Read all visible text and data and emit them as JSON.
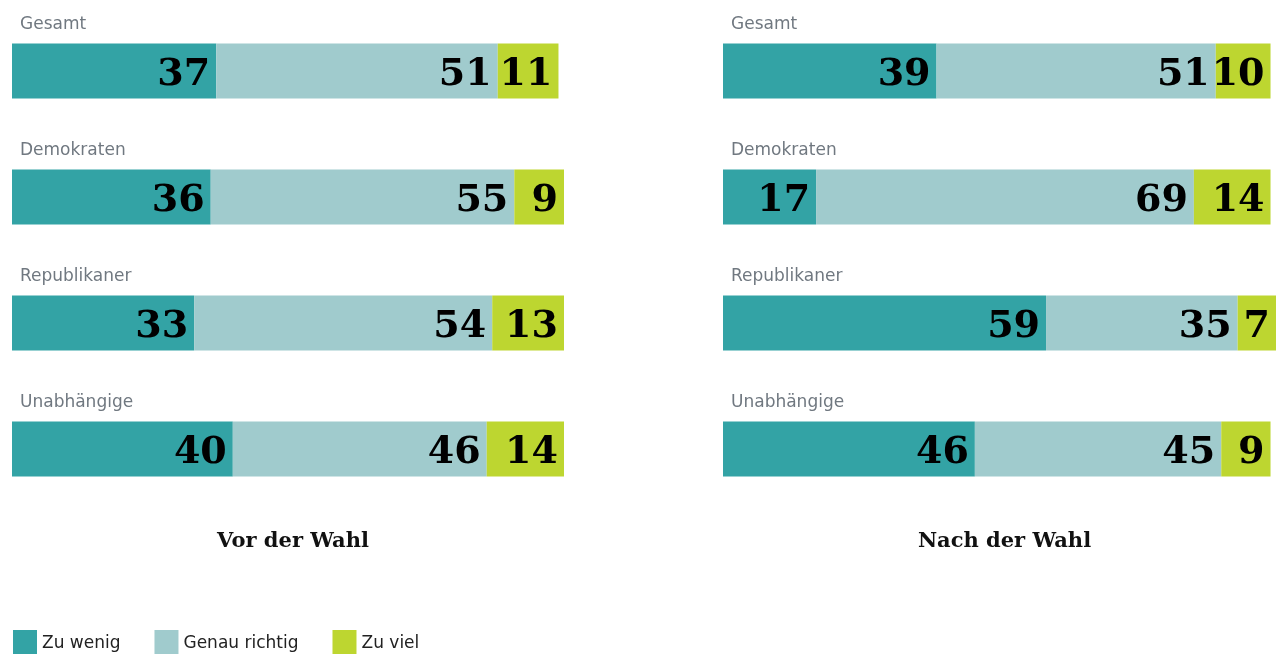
{
  "chart_data": [
    {
      "type": "bar",
      "orientation": "horizontal",
      "stacked": true,
      "data_labels": true,
      "title": "Vor der Wahl",
      "legend": "bottom left",
      "categories": [
        "Gesamt",
        "Demokraten",
        "Republikaner",
        "Unabhängige"
      ],
      "series": [
        {
          "name": "Zu wenig",
          "color": "#33a3a5",
          "values": [
            37,
            36,
            33,
            40
          ]
        },
        {
          "name": "Genau richtig",
          "color": "#a0cbcd",
          "values": [
            51,
            55,
            54,
            46
          ]
        },
        {
          "name": "Zu viel",
          "color": "#bdd630",
          "values": [
            11,
            9,
            13,
            14
          ]
        }
      ]
    },
    {
      "type": "bar",
      "orientation": "horizontal",
      "stacked": true,
      "data_labels": true,
      "title": "Nach der Wahl",
      "categories": [
        "Gesamt",
        "Demokraten",
        "Republikaner",
        "Unabhängige"
      ],
      "series": [
        {
          "color": "#33a3a5",
          "values": [
            39,
            17,
            59,
            46
          ]
        },
        {
          "color": "#a0cbcd",
          "values": [
            51,
            69,
            35,
            45
          ]
        },
        {
          "color": "#bdd630",
          "values": [
            10,
            14,
            7,
            9
          ]
        }
      ]
    }
  ]
}
